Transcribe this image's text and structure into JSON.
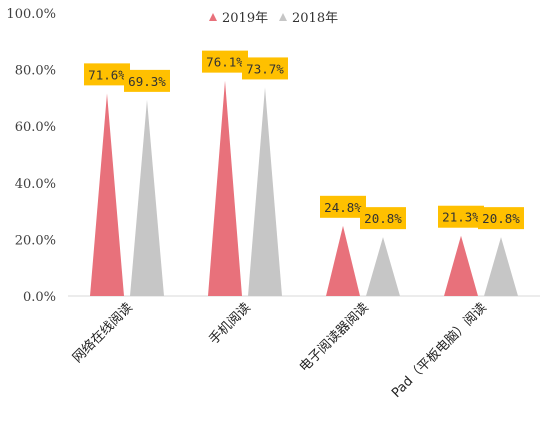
{
  "chart_data": {
    "type": "bar",
    "categories": [
      "网络在线阅读",
      "手机阅读",
      "电子阅读器阅读",
      "Pad（平板电脑）阅读"
    ],
    "series": [
      {
        "name": "2019年",
        "values": [
          71.6,
          76.1,
          24.8,
          21.3
        ],
        "color": "#e8717b"
      },
      {
        "name": "2018年",
        "values": [
          69.3,
          73.7,
          20.8,
          20.8
        ],
        "color": "#c6c6c6"
      }
    ],
    "data_labels": [
      [
        "71.6%",
        "76.1%",
        "24.8%",
        "21.3%"
      ],
      [
        "69.3%",
        "73.7%",
        "20.8%",
        "20.8%"
      ]
    ],
    "y_ticks": [
      "0.0%",
      "20.0%",
      "40.0%",
      "60.0%",
      "80.0%",
      "100.0%"
    ],
    "ylim": [
      0,
      100
    ],
    "grid": false,
    "legend_position": "top",
    "label_bg_color": "#ffc000",
    "axis_color": "#d9d9d9",
    "bar_shape": "triangle"
  }
}
